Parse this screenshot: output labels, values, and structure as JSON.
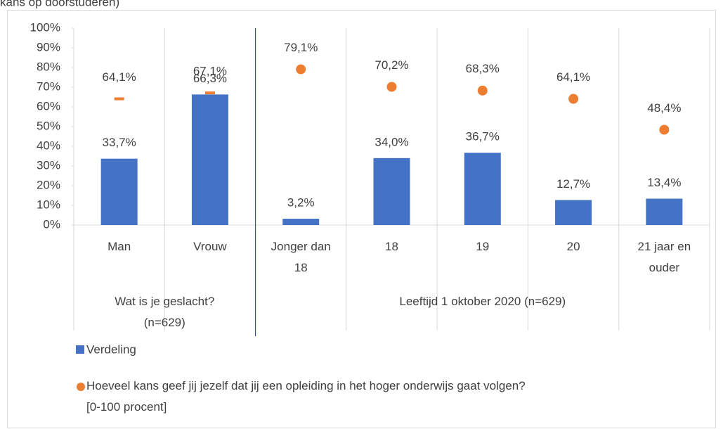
{
  "chart_data": {
    "type": "bar",
    "title": "kans op doorstuderen)",
    "categories": [
      "Man",
      "Vrouw",
      "Jonger dan 18",
      "18",
      "19",
      "20",
      "21 jaar en ouder"
    ],
    "groups": [
      {
        "label": "Wat is je geslacht? (n=629)",
        "span": 2
      },
      {
        "label": "Leeftijd 1 oktober 2020 (n=629)",
        "span": 5
      }
    ],
    "series": [
      {
        "name": "Verdeling",
        "type": "bar",
        "color": "#4472c4",
        "values": [
          33.7,
          66.3,
          3.2,
          34.0,
          36.7,
          12.7,
          13.4
        ],
        "value_labels": [
          "33,7%",
          "66,3%",
          "3,2%",
          "34,0%",
          "36,7%",
          "12,7%",
          "13,4%"
        ]
      },
      {
        "name": "Hoeveel kans geef jij jezelf dat jij een opleiding in het hoger onderwijs gaat volgen? [0-100 procent]",
        "type": "scatter",
        "color": "#ed7d31",
        "markers": [
          "dash",
          "dash",
          "circle",
          "circle",
          "circle",
          "circle",
          "circle"
        ],
        "values": [
          64.1,
          67.1,
          79.1,
          70.2,
          68.3,
          64.1,
          48.4
        ],
        "value_labels": [
          "64,1%",
          "67,1%",
          "79,1%",
          "70,2%",
          "68,3%",
          "64,1%",
          "48,4%"
        ]
      }
    ],
    "ylim": [
      0,
      100
    ],
    "yticks": [
      {
        "value": 0,
        "label": "0%"
      },
      {
        "value": 10,
        "label": "10%"
      },
      {
        "value": 20,
        "label": "20%"
      },
      {
        "value": 30,
        "label": "30%"
      },
      {
        "value": 40,
        "label": "40%"
      },
      {
        "value": 50,
        "label": "50%"
      },
      {
        "value": 60,
        "label": "60%"
      },
      {
        "value": 70,
        "label": "70%"
      },
      {
        "value": 80,
        "label": "80%"
      },
      {
        "value": 90,
        "label": "90%"
      },
      {
        "value": 100,
        "label": "100%"
      }
    ],
    "legend": "bottom"
  }
}
